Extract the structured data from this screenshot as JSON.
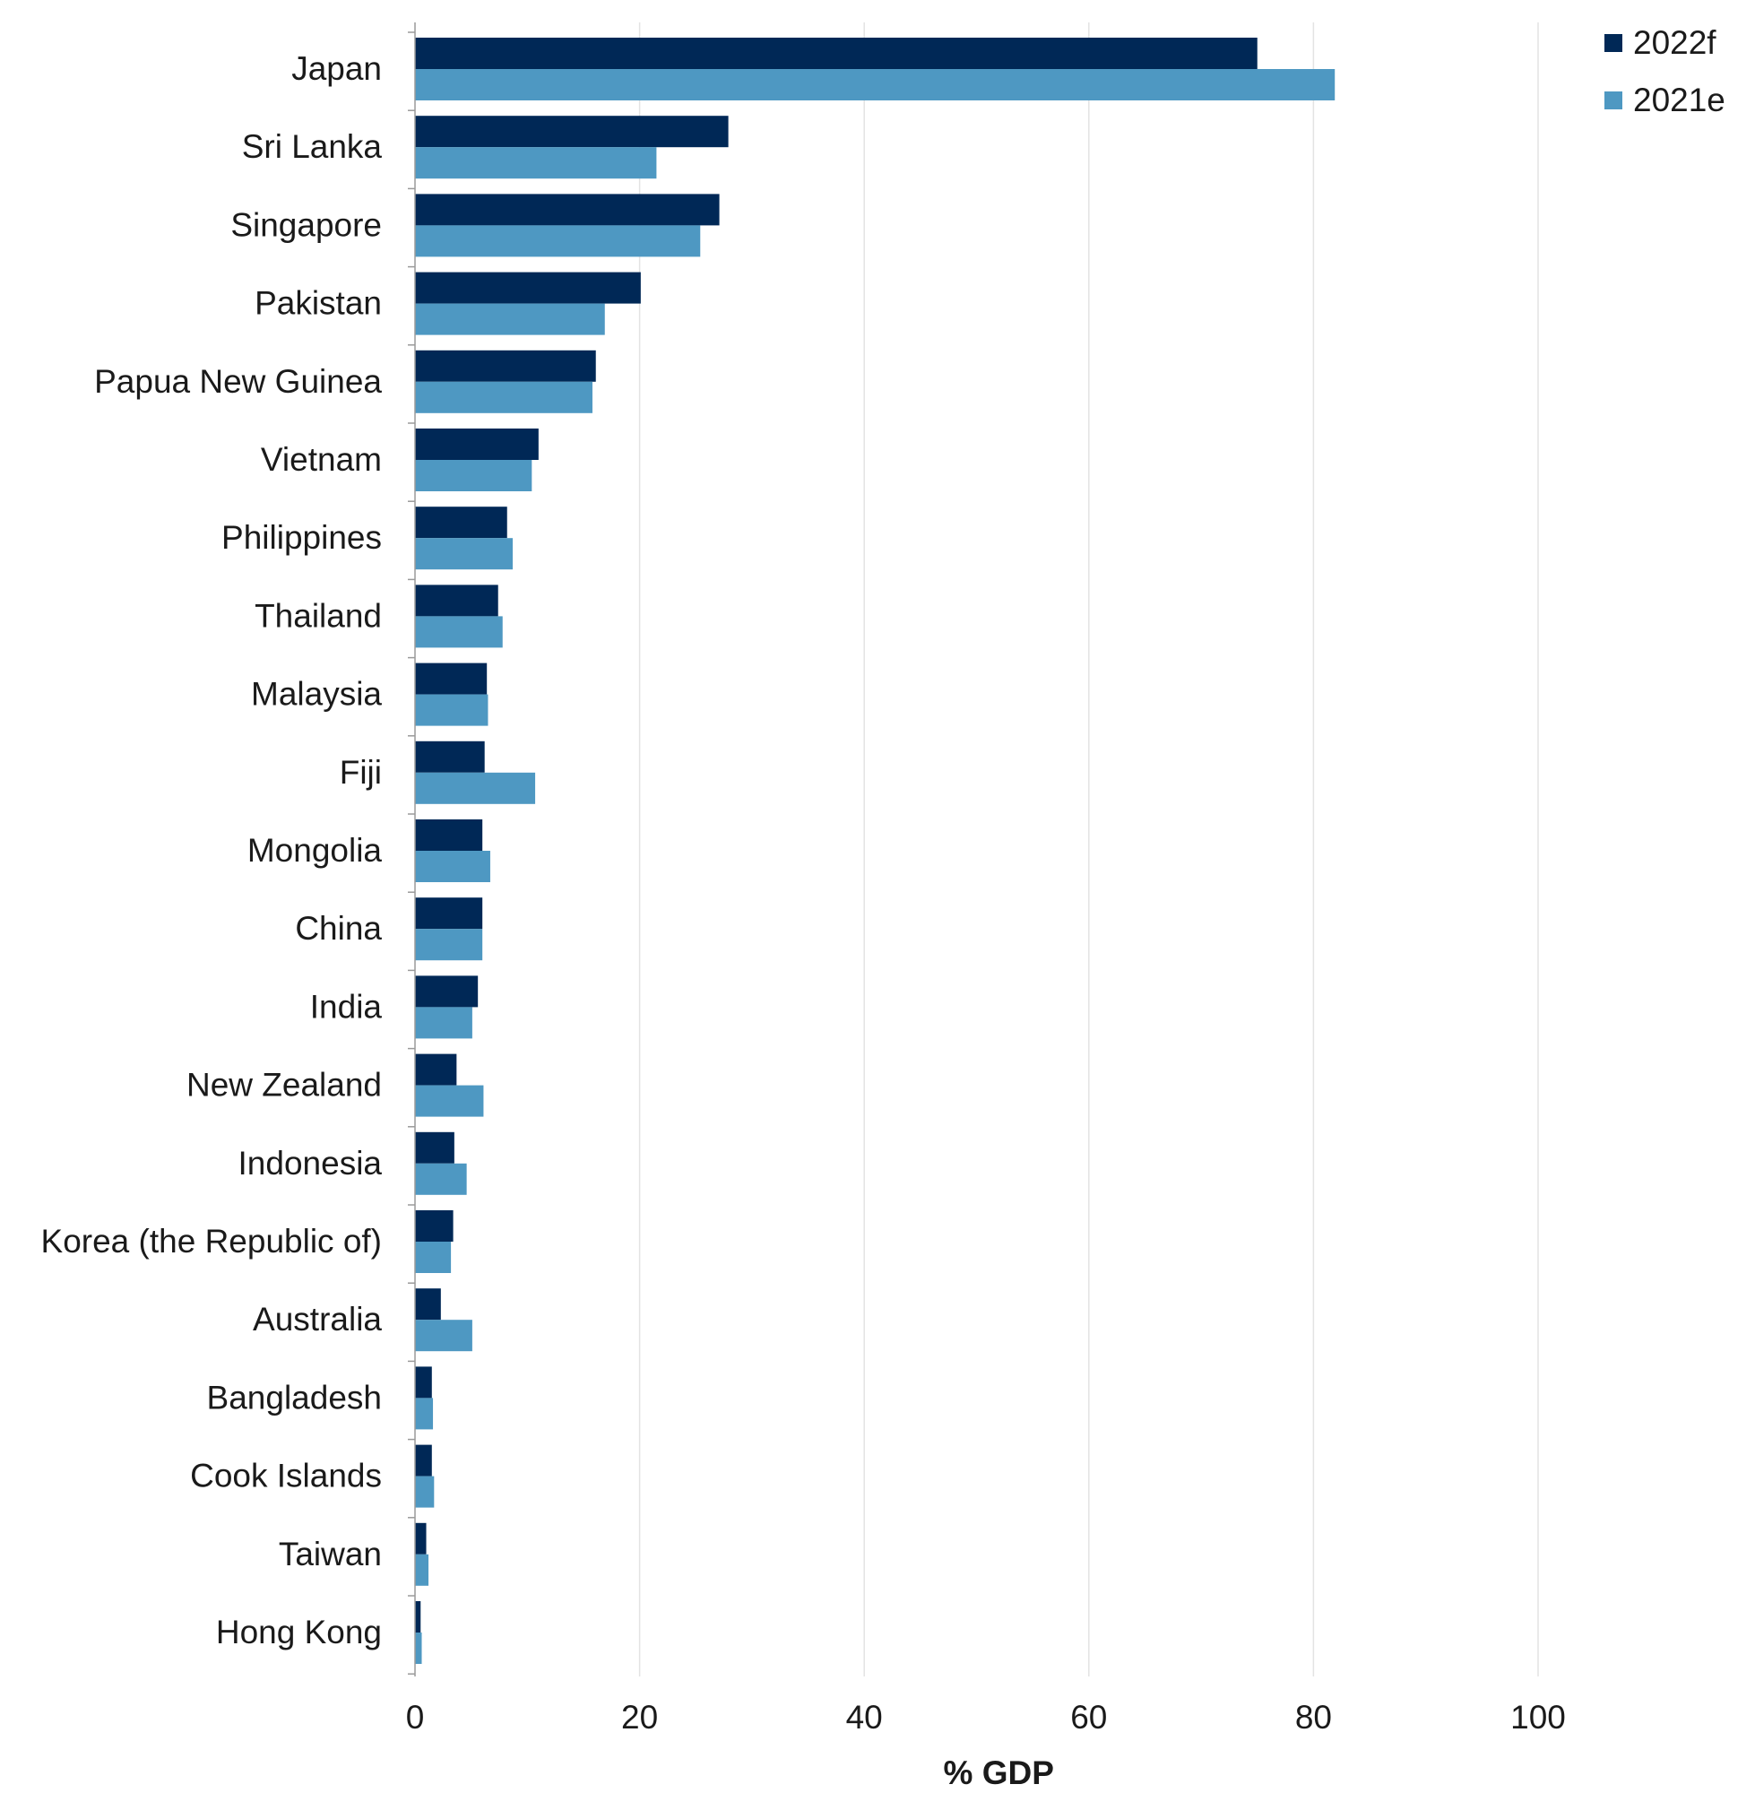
{
  "chart_data": {
    "type": "bar",
    "orientation": "horizontal",
    "title": "",
    "xlabel": "% GDP",
    "ylabel": "",
    "xlim": [
      0,
      110
    ],
    "x_ticks": [
      0,
      20,
      40,
      60,
      80,
      100
    ],
    "grid": true,
    "legend_position": "top-right",
    "categories": [
      "Japan",
      "Sri Lanka",
      "Singapore",
      "Pakistan",
      "Papua New Guinea",
      "Vietnam",
      "Philippines",
      "Thailand",
      "Malaysia",
      "Fiji",
      "Mongolia",
      "China",
      "India",
      "New Zealand",
      "Indonesia",
      "Korea (the Republic of)",
      "Australia",
      "Bangladesh",
      "Cook Islands",
      "Taiwan",
      "Hong Kong"
    ],
    "series": [
      {
        "name": "2022f",
        "color": "#002856",
        "values": [
          75.0,
          27.9,
          27.1,
          20.1,
          16.1,
          11.0,
          8.2,
          7.4,
          6.4,
          6.2,
          6.0,
          6.0,
          5.6,
          3.7,
          3.5,
          3.4,
          2.3,
          1.5,
          1.5,
          1.0,
          0.5
        ]
      },
      {
        "name": "2021e",
        "color": "#4e98c2",
        "values": [
          81.9,
          21.5,
          25.4,
          16.9,
          15.8,
          10.4,
          8.7,
          7.8,
          6.5,
          10.7,
          6.7,
          6.0,
          5.1,
          6.1,
          4.6,
          3.2,
          5.1,
          1.6,
          1.7,
          1.2,
          0.6
        ]
      }
    ]
  }
}
